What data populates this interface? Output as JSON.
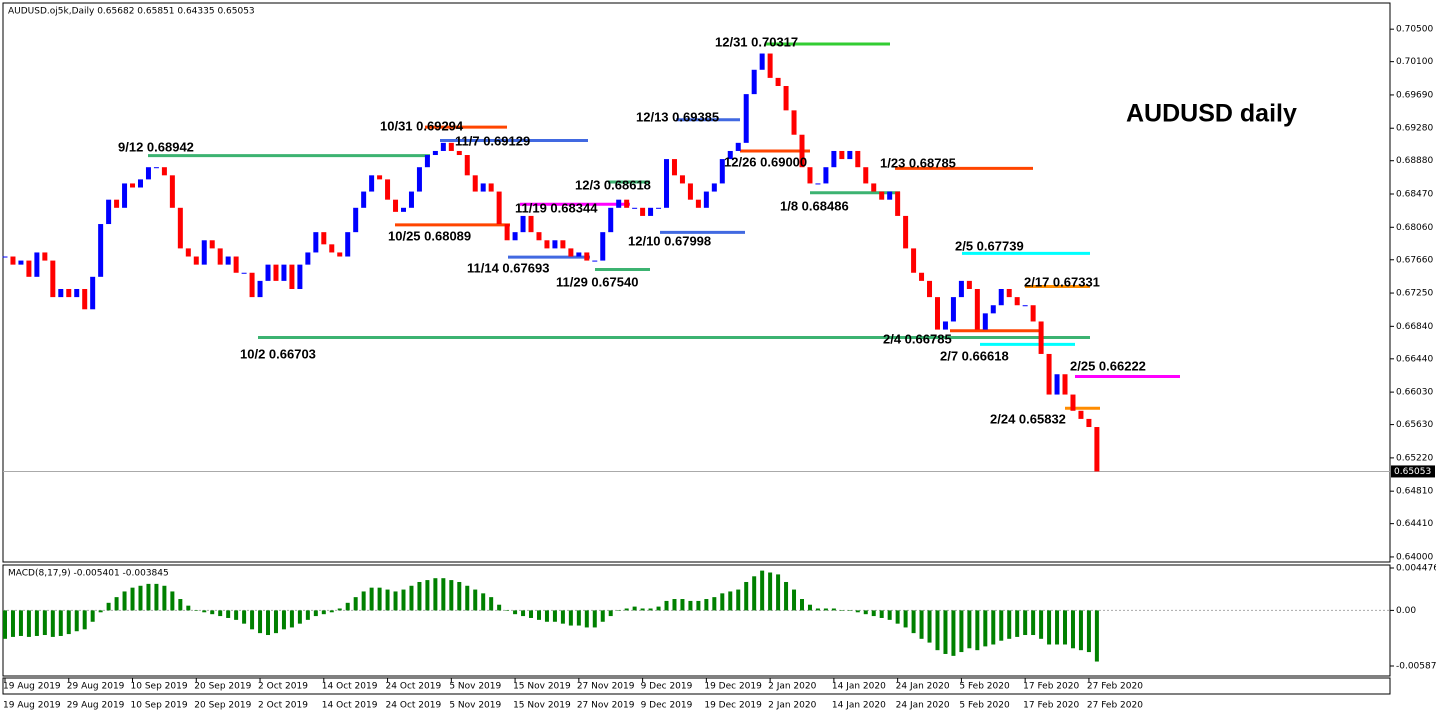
{
  "chart_data": [
    {
      "type": "candlestick",
      "header": "AUDUSD.oj5k,Daily  0.65682 0.65851 0.64335 0.65053",
      "title": "AUDUSD daily",
      "ylim": [
        0.6395,
        0.7081
      ],
      "yticks": [
        {
          "value": 0.705,
          "label": "0.70500"
        },
        {
          "value": 0.701,
          "label": "0.70100"
        },
        {
          "value": 0.6969,
          "label": "0.69690"
        },
        {
          "value": 0.6928,
          "label": "0.69280"
        },
        {
          "value": 0.6888,
          "label": "0.68880"
        },
        {
          "value": 0.6847,
          "label": "0.68470"
        },
        {
          "value": 0.6806,
          "label": "0.68060"
        },
        {
          "value": 0.6766,
          "label": "0.67660"
        },
        {
          "value": 0.6725,
          "label": "0.67250"
        },
        {
          "value": 0.6684,
          "label": "0.66840"
        },
        {
          "value": 0.6644,
          "label": "0.66440"
        },
        {
          "value": 0.6603,
          "label": "0.66030"
        },
        {
          "value": 0.6563,
          "label": "0.65630"
        },
        {
          "value": 0.6522,
          "label": "0.65220"
        },
        {
          "value": 0.6481,
          "label": "0.64810"
        },
        {
          "value": 0.6441,
          "label": "0.64410"
        },
        {
          "value": 0.64,
          "label": "0.64000"
        }
      ],
      "current_price": 0.65053,
      "up_color": "#0000ff",
      "down_color": "#ff0000",
      "x_labels": [
        "19 Aug 2019",
        "29 Aug 2019",
        "10 Sep 2019",
        "20 Sep 2019",
        "2 Oct 2019",
        "14 Oct 2019",
        "24 Oct 2019",
        "5 Nov 2019",
        "15 Nov 2019",
        "27 Nov 2019",
        "9 Dec 2019",
        "19 Dec 2019",
        "2 Jan 2020",
        "14 Jan 2020",
        "24 Jan 2020",
        "5 Feb 2020",
        "17 Feb 2020",
        "27 Feb 2020"
      ],
      "close": [
        0.677,
        0.676,
        0.6765,
        0.6745,
        0.6775,
        0.6765,
        0.672,
        0.673,
        0.672,
        0.673,
        0.6705,
        0.6745,
        0.681,
        0.684,
        0.683,
        0.686,
        0.6855,
        0.6865,
        0.688,
        0.688,
        0.687,
        0.683,
        0.678,
        0.677,
        0.676,
        0.679,
        0.678,
        0.676,
        0.677,
        0.675,
        0.675,
        0.672,
        0.674,
        0.676,
        0.674,
        0.676,
        0.673,
        0.676,
        0.6775,
        0.68,
        0.6785,
        0.6775,
        0.677,
        0.68,
        0.683,
        0.685,
        0.687,
        0.6865,
        0.684,
        0.6825,
        0.683,
        0.685,
        0.688,
        0.6895,
        0.69,
        0.691,
        0.69,
        0.6895,
        0.687,
        0.685,
        0.686,
        0.685,
        0.681,
        0.679,
        0.68,
        0.682,
        0.68,
        0.679,
        0.678,
        0.679,
        0.678,
        0.677,
        0.6775,
        0.6765,
        0.6765,
        0.68,
        0.683,
        0.684,
        0.683,
        0.683,
        0.682,
        0.683,
        0.683,
        0.689,
        0.687,
        0.686,
        0.684,
        0.683,
        0.685,
        0.686,
        0.689,
        0.69,
        0.691,
        0.697,
        0.7,
        0.702,
        0.699,
        0.698,
        0.695,
        0.692,
        0.688,
        0.686,
        0.686,
        0.688,
        0.69,
        0.689,
        0.69,
        0.688,
        0.686,
        0.685,
        0.684,
        0.685,
        0.682,
        0.678,
        0.675,
        0.674,
        0.672,
        0.668,
        0.669,
        0.672,
        0.674,
        0.673,
        0.668,
        0.67,
        0.671,
        0.673,
        0.672,
        0.671,
        0.671,
        0.669,
        0.665,
        0.66,
        0.6625,
        0.66,
        0.658,
        0.657,
        0.656,
        0.65053
      ],
      "annotations": [
        {
          "label": "9/12 0.68942",
          "value": 0.68942,
          "color": "#3cb371"
        },
        {
          "label": "10/31 0.69294",
          "value": 0.69294,
          "color": "#ff4500"
        },
        {
          "label": "11/7 0.69129",
          "value": 0.69129,
          "color": "#4169e1"
        },
        {
          "label": "10/25 0.68089",
          "value": 0.68089,
          "color": "#ff4500"
        },
        {
          "label": "11/19 0.68344",
          "value": 0.68344,
          "color": "#ff00ff"
        },
        {
          "label": "12/3 0.68618",
          "value": 0.68618,
          "color": "#3cb371"
        },
        {
          "label": "11/14 0.67693",
          "value": 0.67693,
          "color": "#4169e1"
        },
        {
          "label": "11/29 0.67540",
          "value": 0.6754,
          "color": "#3cb371"
        },
        {
          "label": "12/10 0.67998",
          "value": 0.67998,
          "color": "#4169e1"
        },
        {
          "label": "12/13 0.69385",
          "value": 0.69385,
          "color": "#4169e1"
        },
        {
          "label": "12/31 0.70317",
          "value": 0.70317,
          "color": "#32cd32"
        },
        {
          "label": "12/26 0.69000",
          "value": 0.69,
          "color": "#ff4500"
        },
        {
          "label": "1/8 0.68486",
          "value": 0.68486,
          "color": "#3cb371"
        },
        {
          "label": "1/23 0.68785",
          "value": 0.68785,
          "color": "#ff4500"
        },
        {
          "label": "10/2 0.66703",
          "value": 0.66703,
          "color": "#3cb371"
        },
        {
          "label": "2/5 0.67739",
          "value": 0.67739,
          "color": "#00ffff"
        },
        {
          "label": "2/17 0.67331",
          "value": 0.67331,
          "color": "#ff8c00"
        },
        {
          "label": "2/4 0.66785",
          "value": 0.66785,
          "color": "#ff4500"
        },
        {
          "label": "2/7 0.66618",
          "value": 0.66618,
          "color": "#00ffff"
        },
        {
          "label": "2/25 0.66222",
          "value": 0.66222,
          "color": "#ff00ff"
        },
        {
          "label": "2/24 0.65832",
          "value": 0.65832,
          "color": "#ff8c00"
        }
      ]
    },
    {
      "type": "histogram",
      "header": "MACD(8,17,9) -0.005401 -0.003845",
      "color": "#008000",
      "ylim": [
        -0.005871,
        0.004476
      ],
      "yticks": [
        0.004476,
        {
          "value": 0,
          "label": "0.00"
        },
        -0.005871
      ],
      "values": [
        -0.003,
        -0.0028,
        -0.0027,
        -0.0028,
        -0.0027,
        -0.0026,
        -0.0028,
        -0.0027,
        -0.0025,
        -0.0022,
        -0.002,
        -0.0012,
        -0.0002,
        0.0008,
        0.0014,
        0.002,
        0.0024,
        0.0026,
        0.0028,
        0.0028,
        0.0026,
        0.002,
        0.0012,
        0.0005,
        0,
        -0.0002,
        -0.0004,
        -0.0006,
        -0.0008,
        -0.001,
        -0.0014,
        -0.002,
        -0.0024,
        -0.0026,
        -0.0024,
        -0.002,
        -0.0018,
        -0.0014,
        -0.001,
        -0.0006,
        -0.0004,
        -0.0002,
        0.0002,
        0.0008,
        0.0014,
        0.002,
        0.0024,
        0.0024,
        0.0022,
        0.002,
        0.0022,
        0.0026,
        0.003,
        0.0032,
        0.0034,
        0.0034,
        0.0032,
        0.003,
        0.0026,
        0.0022,
        0.0018,
        0.0014,
        0.0006,
        0,
        -0.0004,
        -0.0006,
        -0.0008,
        -0.001,
        -0.0012,
        -0.0012,
        -0.0014,
        -0.0016,
        -0.0016,
        -0.0018,
        -0.0018,
        -0.0012,
        -0.0006,
        0,
        0.0002,
        0.0004,
        0.0002,
        0.0002,
        0.0004,
        0.001,
        0.0012,
        0.0012,
        0.001,
        0.001,
        0.0012,
        0.0014,
        0.0018,
        0.002,
        0.0022,
        0.003,
        0.0036,
        0.0042,
        0.004,
        0.0038,
        0.003,
        0.0022,
        0.0012,
        0.0006,
        0.0002,
        0.0002,
        0.0002,
        0,
        0,
        -0.0002,
        -0.0004,
        -0.0006,
        -0.0008,
        -0.001,
        -0.0014,
        -0.0018,
        -0.0024,
        -0.003,
        -0.0034,
        -0.0042,
        -0.0046,
        -0.0048,
        -0.0044,
        -0.004,
        -0.0042,
        -0.0038,
        -0.0036,
        -0.0032,
        -0.003,
        -0.0028,
        -0.0026,
        -0.0026,
        -0.003,
        -0.0036,
        -0.0036,
        -0.0036,
        -0.004,
        -0.0042,
        -0.0044,
        -0.0054
      ]
    }
  ]
}
